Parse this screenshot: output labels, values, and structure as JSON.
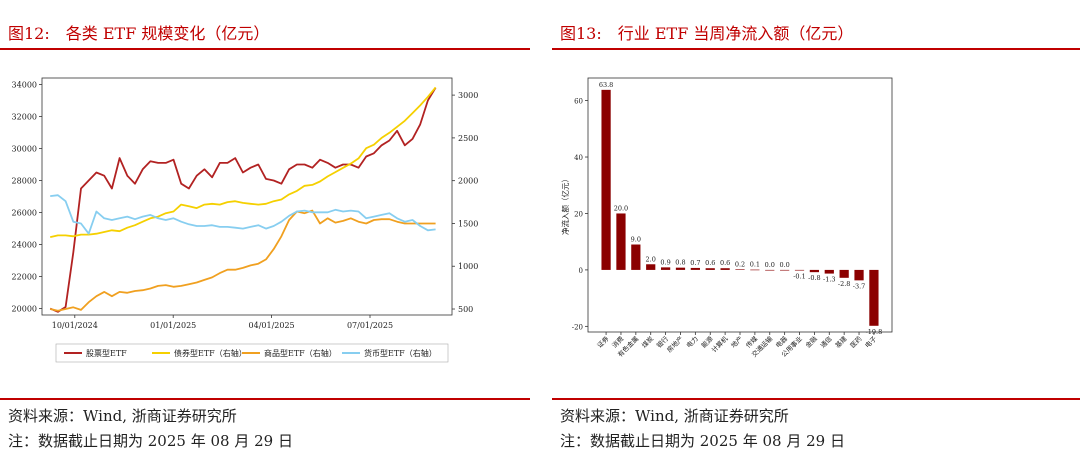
{
  "left": {
    "title": "图12:　各类 ETF 规模变化（亿元）",
    "source": "资料来源：Wind, 浙商证券研究所",
    "note": "注：数据截止日期为 2025 年 08 月 29 日",
    "chart_data": {
      "type": "line",
      "title": "各类 ETF 规模变化（亿元）",
      "x_tick_labels": [
        "10/01/2024",
        "01/01/2025",
        "04/01/2025",
        "07/01/2025"
      ],
      "left_axis": {
        "ylim": [
          19600,
          34400
        ],
        "ticks": [
          "20000",
          "22000",
          "24000",
          "26000",
          "28000",
          "30000",
          "32000",
          "34000"
        ]
      },
      "right_axis": {
        "ylim": [
          430,
          3200
        ],
        "ticks": [
          "500",
          "1000",
          "1500",
          "2000",
          "2500",
          "3000"
        ]
      },
      "series": [
        {
          "name": "股票型ETF",
          "axis": "left",
          "color": "#b22222",
          "values": [
            20000,
            19800,
            20100,
            23500,
            27500,
            28000,
            28500,
            28300,
            27500,
            29400,
            28300,
            27800,
            28700,
            29200,
            29100,
            29100,
            29300,
            27800,
            27500,
            28300,
            28700,
            28200,
            29100,
            29100,
            29400,
            28500,
            28800,
            29000,
            28100,
            28000,
            27800,
            28700,
            29000,
            29000,
            28800,
            29300,
            29100,
            28800,
            29000,
            29000,
            28800,
            29500,
            29700,
            30200,
            30500,
            31100,
            30200,
            30600,
            31500,
            33000,
            33800
          ]
        },
        {
          "name": "债券型ETF（右轴）",
          "axis": "right",
          "color": "#f5d000",
          "values": [
            1340,
            1360,
            1360,
            1350,
            1370,
            1370,
            1380,
            1400,
            1420,
            1410,
            1450,
            1480,
            1520,
            1560,
            1580,
            1620,
            1640,
            1720,
            1700,
            1680,
            1720,
            1730,
            1720,
            1750,
            1760,
            1740,
            1730,
            1720,
            1730,
            1760,
            1780,
            1840,
            1880,
            1940,
            1950,
            1990,
            2050,
            2100,
            2150,
            2200,
            2260,
            2380,
            2420,
            2500,
            2560,
            2630,
            2700,
            2790,
            2880,
            2980,
            3090
          ]
        },
        {
          "name": "商品型ETF（右轴）",
          "axis": "right",
          "color": "#f0a020",
          "values": [
            500,
            480,
            500,
            520,
            490,
            580,
            650,
            700,
            650,
            700,
            690,
            710,
            720,
            740,
            770,
            780,
            760,
            770,
            790,
            810,
            840,
            870,
            920,
            960,
            960,
            980,
            1010,
            1030,
            1080,
            1200,
            1350,
            1540,
            1640,
            1620,
            1650,
            1500,
            1560,
            1510,
            1530,
            1560,
            1520,
            1500,
            1540,
            1550,
            1550,
            1520,
            1500,
            1500,
            1500,
            1500,
            1500
          ]
        },
        {
          "name": "货币型ETF（右轴）",
          "axis": "right",
          "color": "#87cef0",
          "values": [
            1820,
            1830,
            1760,
            1520,
            1500,
            1380,
            1640,
            1560,
            1540,
            1560,
            1580,
            1550,
            1580,
            1600,
            1560,
            1540,
            1560,
            1520,
            1490,
            1470,
            1470,
            1480,
            1460,
            1460,
            1450,
            1440,
            1460,
            1480,
            1440,
            1470,
            1520,
            1590,
            1640,
            1650,
            1630,
            1630,
            1630,
            1660,
            1640,
            1650,
            1640,
            1560,
            1580,
            1600,
            1620,
            1560,
            1520,
            1540,
            1470,
            1420,
            1430
          ]
        }
      ]
    }
  },
  "right": {
    "title": "图13:　行业 ETF 当周净流入额（亿元）",
    "source": "资料来源：Wind, 浙商证券研究所",
    "note": "注：数据截止日期为 2025 年 08 月 29 日",
    "chart_data": {
      "type": "bar",
      "title": "行业 ETF 当周净流入额（亿元）",
      "ylabel": "净流入额（亿元）",
      "ylim": [
        -22,
        68
      ],
      "y_ticks": [
        "-20",
        "0",
        "20",
        "40",
        "60"
      ],
      "bar_color": "#8b0000",
      "categories": [
        "证券",
        "消费",
        "有色金属",
        "煤炭",
        "银行",
        "房地产",
        "电力",
        "能源",
        "计算机",
        "地产",
        "传媒",
        "交通运输",
        "电器",
        "公用事业",
        "金融",
        "通信",
        "基建",
        "医药",
        "电子"
      ],
      "values": [
        63.8,
        20.0,
        9.0,
        2.0,
        0.9,
        0.8,
        0.7,
        0.6,
        0.6,
        0.2,
        0.1,
        0.0,
        0.0,
        -0.1,
        -0.8,
        -1.3,
        -2.8,
        -3.7,
        -19.8
      ],
      "labels": [
        "63.8",
        "20.0",
        "9.0",
        "2.0",
        "0.9",
        "0.8",
        "0.7",
        "0.6",
        "0.6",
        "0.2",
        "0.1",
        "0.0",
        "0.0",
        "-0.1",
        "-0.8",
        "-1.3",
        "-2.8",
        "-3.7",
        "-19.8"
      ]
    }
  }
}
